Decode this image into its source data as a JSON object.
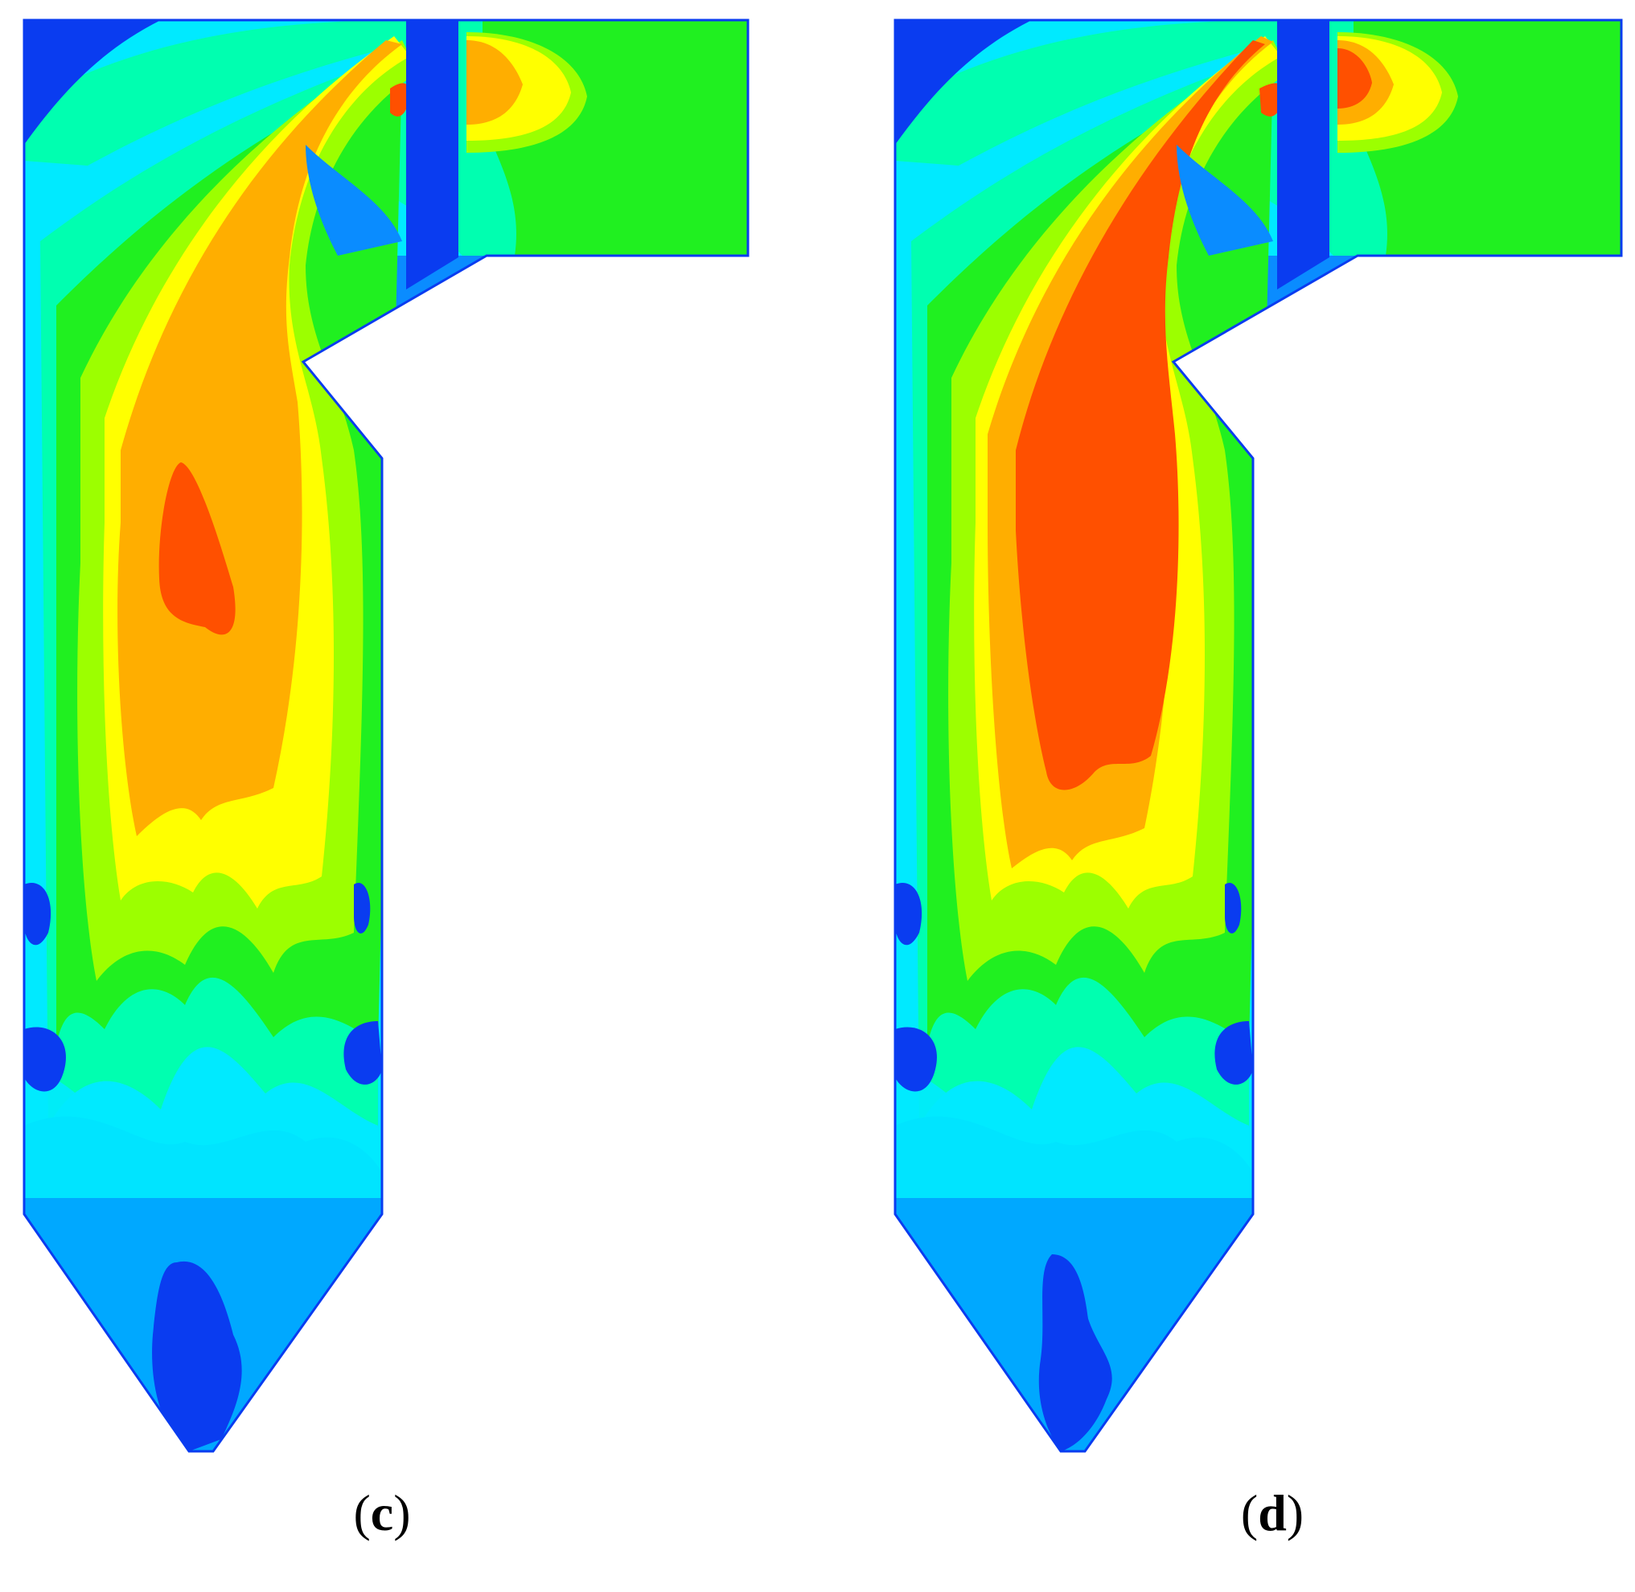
{
  "figure": {
    "panels": [
      {
        "id": "c",
        "caption_open": "(",
        "caption_letter": "c",
        "caption_close": ")"
      },
      {
        "id": "d",
        "caption_open": "(",
        "caption_letter": "d",
        "caption_close": ")"
      }
    ],
    "colormap": {
      "darkblue": "#0a3cf0",
      "blue": "#0a8cff",
      "lightblue": "#00a8ff",
      "cyan": "#00eaff",
      "aqua": "#00ffb0",
      "green": "#20f020",
      "lime": "#9cff00",
      "yellow": "#ffff00",
      "orange": "#ffae00",
      "red": "#ff5000"
    }
  }
}
